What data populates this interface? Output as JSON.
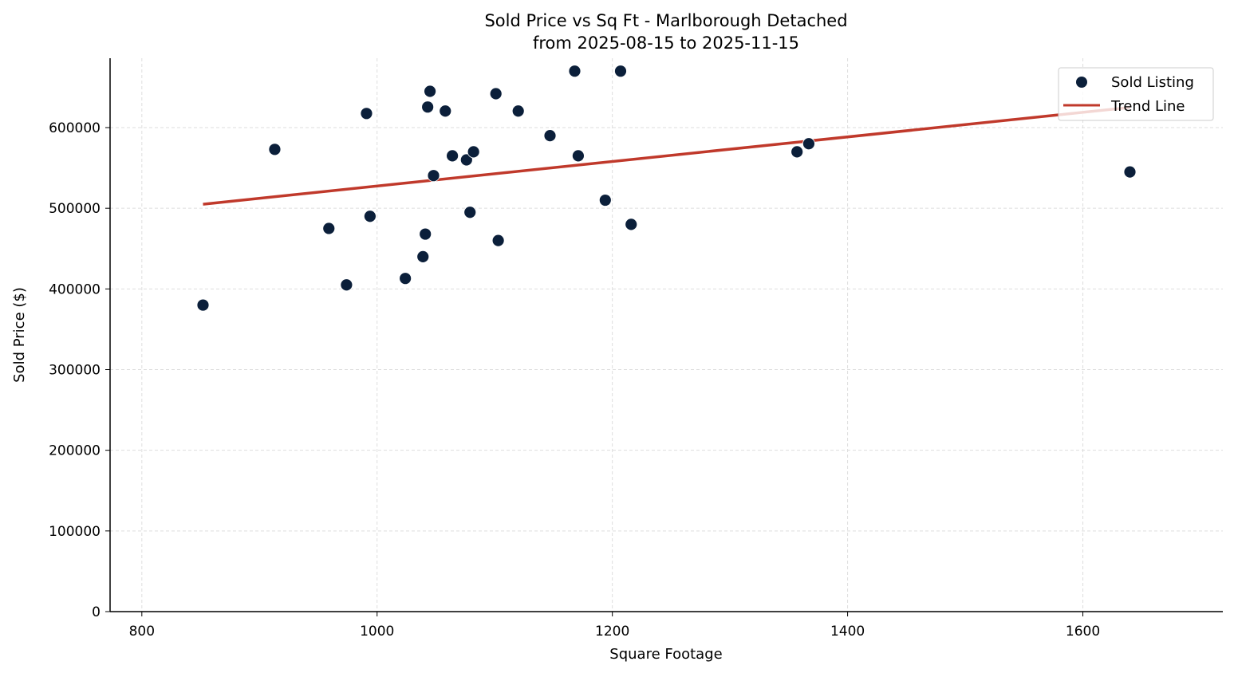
{
  "chart_data": {
    "type": "scatter",
    "title": "Sold Price vs Sq Ft - Marlborough Detached",
    "subtitle": "from 2025-08-15 to 2025-11-15",
    "xlabel": "Square Footage",
    "ylabel": "Sold Price ($)",
    "xlim": [
      773,
      1719
    ],
    "ylim": [
      0,
      686000
    ],
    "xticks": [
      800,
      1000,
      1200,
      1400,
      1600
    ],
    "yticks": [
      0,
      100000,
      200000,
      300000,
      400000,
      500000,
      600000
    ],
    "grid": true,
    "legend_placement": "top-right",
    "colors": {
      "points": "#0b1f3a",
      "trend": "#c0392b"
    },
    "series": [
      {
        "name": "Sold Listing",
        "type": "scatter",
        "points": [
          [
            852,
            380000
          ],
          [
            913,
            573000
          ],
          [
            959,
            475000
          ],
          [
            974,
            405000
          ],
          [
            991,
            617500
          ],
          [
            994,
            490000
          ],
          [
            1024,
            413000
          ],
          [
            1039,
            440000
          ],
          [
            1041,
            468000
          ],
          [
            1043,
            625500
          ],
          [
            1045,
            645000
          ],
          [
            1048,
            540500
          ],
          [
            1058,
            620500
          ],
          [
            1064,
            565000
          ],
          [
            1076,
            560000
          ],
          [
            1079,
            495000
          ],
          [
            1082,
            570000
          ],
          [
            1101,
            642000
          ],
          [
            1103,
            460000
          ],
          [
            1120,
            620500
          ],
          [
            1147,
            590000
          ],
          [
            1168,
            670000
          ],
          [
            1171,
            565000
          ],
          [
            1194,
            510000
          ],
          [
            1207,
            670000
          ],
          [
            1216,
            480000
          ],
          [
            1357,
            570000
          ],
          [
            1367,
            580000
          ],
          [
            1640,
            545000
          ]
        ]
      },
      {
        "name": "Trend Line",
        "type": "line",
        "points": [
          [
            852,
            505000
          ],
          [
            1640,
            625000
          ]
        ]
      }
    ]
  }
}
